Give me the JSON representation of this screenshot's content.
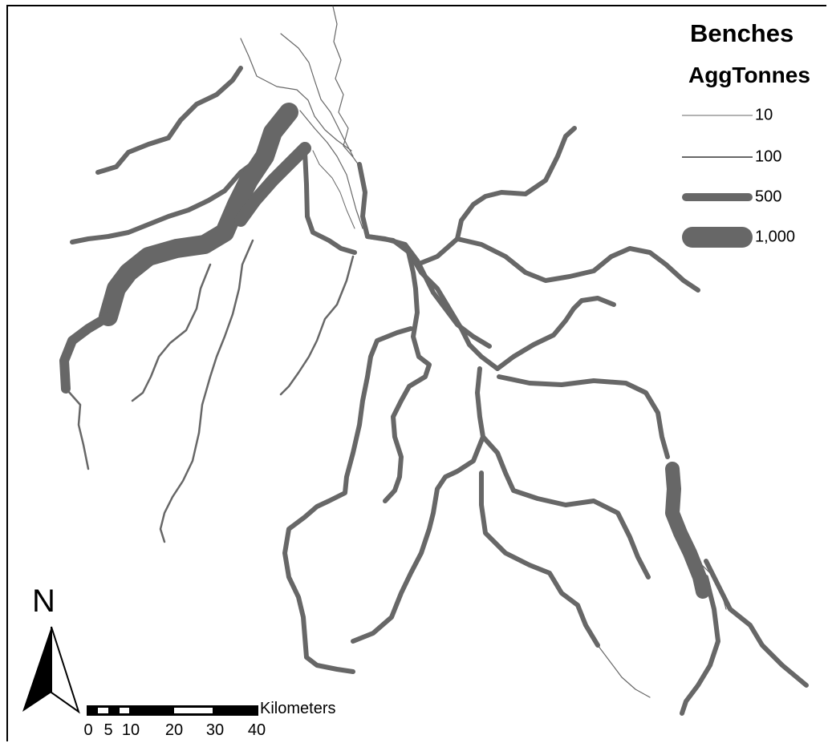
{
  "legend": {
    "title": "Benches",
    "field": "AggTonnes",
    "items": [
      {
        "label": "10",
        "tonnes": 10
      },
      {
        "label": "100",
        "tonnes": 100
      },
      {
        "label": "500",
        "tonnes": 500
      },
      {
        "label": "1,000",
        "tonnes": 1000
      }
    ]
  },
  "north_arrow": {
    "letter": "N"
  },
  "scale_bar": {
    "unit": "Kilometers",
    "ticks": [
      "0",
      "5",
      "10",
      "20",
      "30",
      "40"
    ]
  },
  "colors": {
    "river": "#676767",
    "text": "#000000",
    "background": "#ffffff"
  }
}
